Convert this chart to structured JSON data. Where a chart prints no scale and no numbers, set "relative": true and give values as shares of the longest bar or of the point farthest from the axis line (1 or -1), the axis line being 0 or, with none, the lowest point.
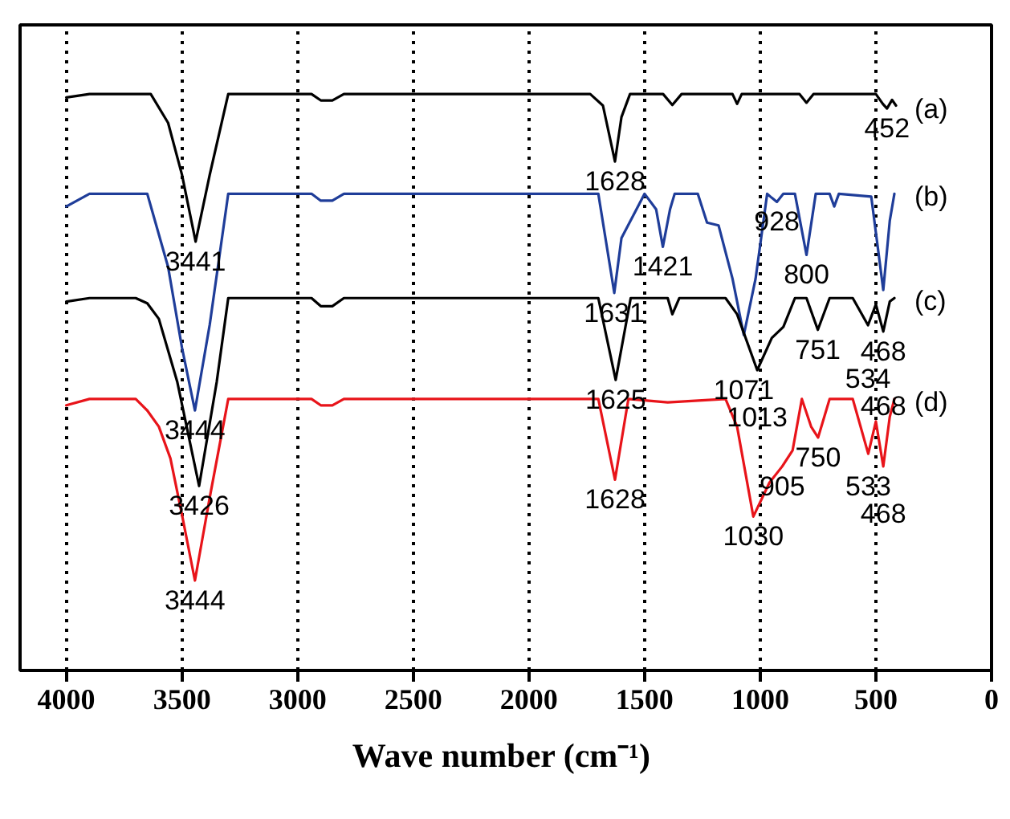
{
  "chart_data": {
    "type": "line",
    "relative": true,
    "xlabel": "Wave  number (cm⁻¹)",
    "xlim": [
      4200,
      0
    ],
    "xticks": [
      4000,
      3500,
      3000,
      2500,
      2000,
      1500,
      1000,
      500,
      0
    ],
    "grid": "x",
    "marker": "none",
    "line_style": "solid",
    "series": [
      {
        "name": "(a)",
        "color": "#000000",
        "x": [
          4000,
          3900,
          3635,
          3560,
          3500,
          3441,
          3380,
          3300,
          2940,
          2900,
          2850,
          2800,
          1735,
          1680,
          1628,
          1600,
          1563,
          1420,
          1380,
          1340,
          1120,
          1100,
          1080,
          830,
          800,
          770,
          500,
          470,
          452,
          430,
          413
        ],
        "values": [
          0.994,
          1.0,
          1.0,
          0.95,
          0.86,
          0.744,
          0.86,
          1.0,
          1.0,
          0.989,
          0.989,
          1.0,
          1.0,
          0.98,
          0.883,
          0.96,
          1.0,
          1.0,
          0.981,
          1.0,
          1.0,
          0.983,
          1.0,
          1.0,
          0.985,
          1.0,
          1.0,
          0.983,
          0.975,
          0.99,
          0.98
        ]
      },
      {
        "name": "(b)",
        "color": "#1f3d99",
        "x": [
          4000,
          3900,
          3650,
          3560,
          3500,
          3444,
          3380,
          3300,
          2940,
          2900,
          2850,
          2800,
          1700,
          1631,
          1600,
          1500,
          1450,
          1421,
          1390,
          1370,
          1270,
          1230,
          1180,
          1120,
          1071,
          1020,
          970,
          950,
          928,
          900,
          850,
          800,
          760,
          700,
          680,
          660,
          520,
          468,
          440,
          420
        ],
        "values": [
          0.805,
          0.827,
          0.827,
          0.7,
          0.56,
          0.451,
          0.6,
          0.827,
          0.827,
          0.815,
          0.815,
          0.827,
          0.827,
          0.655,
          0.75,
          0.827,
          0.8,
          0.735,
          0.8,
          0.827,
          0.827,
          0.777,
          0.772,
          0.68,
          0.582,
          0.68,
          0.827,
          0.82,
          0.813,
          0.827,
          0.827,
          0.721,
          0.827,
          0.827,
          0.805,
          0.827,
          0.822,
          0.66,
          0.78,
          0.827
        ]
      },
      {
        "name": "(c)",
        "color": "#000000",
        "x": [
          4000,
          3900,
          3700,
          3650,
          3600,
          3520,
          3426,
          3350,
          3300,
          2940,
          2900,
          2850,
          2800,
          1700,
          1625,
          1560,
          1400,
          1380,
          1350,
          1150,
          1100,
          1013,
          950,
          900,
          850,
          800,
          751,
          700,
          600,
          534,
          500,
          468,
          440,
          420
        ],
        "values": [
          0.64,
          0.646,
          0.646,
          0.637,
          0.61,
          0.5,
          0.32,
          0.5,
          0.646,
          0.646,
          0.632,
          0.632,
          0.646,
          0.646,
          0.504,
          0.646,
          0.646,
          0.618,
          0.646,
          0.646,
          0.618,
          0.521,
          0.577,
          0.596,
          0.646,
          0.646,
          0.591,
          0.646,
          0.646,
          0.599,
          0.635,
          0.588,
          0.64,
          0.646
        ]
      },
      {
        "name": "(d)",
        "color": "#e8141a",
        "x": [
          4000,
          3900,
          3700,
          3650,
          3600,
          3550,
          3500,
          3444,
          3380,
          3300,
          2940,
          2900,
          2850,
          2800,
          1700,
          1628,
          1570,
          1400,
          1150,
          1100,
          1030,
          960,
          905,
          860,
          820,
          780,
          750,
          700,
          600,
          533,
          500,
          468,
          440,
          420
        ],
        "values": [
          0.46,
          0.471,
          0.471,
          0.451,
          0.423,
          0.368,
          0.27,
          0.156,
          0.3,
          0.471,
          0.471,
          0.46,
          0.46,
          0.471,
          0.471,
          0.331,
          0.471,
          0.465,
          0.471,
          0.423,
          0.267,
          0.326,
          0.354,
          0.382,
          0.471,
          0.423,
          0.404,
          0.471,
          0.471,
          0.376,
          0.432,
          0.354,
          0.44,
          0.471
        ]
      }
    ],
    "annotations": [
      {
        "text": "3441",
        "x": 3441,
        "y": 0.744
      },
      {
        "text": "1628",
        "x": 1628,
        "y": 0.883
      },
      {
        "text": "452",
        "x": 452,
        "y": 0.975
      },
      {
        "text": "3444",
        "x": 3444,
        "y": 0.451
      },
      {
        "text": "1631",
        "x": 1631,
        "y": 0.655
      },
      {
        "text": "1421",
        "x": 1421,
        "y": 0.735
      },
      {
        "text": "1071",
        "x": 1071,
        "y": 0.582
      },
      {
        "text": "928",
        "x": 928,
        "y": 0.813
      },
      {
        "text": "800",
        "x": 800,
        "y": 0.721
      },
      {
        "text": "468",
        "x": 468,
        "y": 0.66
      },
      {
        "text": "3426",
        "x": 3426,
        "y": 0.32
      },
      {
        "text": "1625",
        "x": 1625,
        "y": 0.504
      },
      {
        "text": "1013",
        "x": 1013,
        "y": 0.521
      },
      {
        "text": "751",
        "x": 751,
        "y": 0.591
      },
      {
        "text": "534",
        "x": 534,
        "y": 0.599
      },
      {
        "text": "468",
        "x": 468,
        "y": 0.588
      },
      {
        "text": "3444",
        "x": 3444,
        "y": 0.156
      },
      {
        "text": "1628",
        "x": 1628,
        "y": 0.331
      },
      {
        "text": "1030",
        "x": 1030,
        "y": 0.267
      },
      {
        "text": "905",
        "x": 905,
        "y": 0.354
      },
      {
        "text": "750",
        "x": 750,
        "y": 0.404
      },
      {
        "text": "533",
        "x": 533,
        "y": 0.376
      },
      {
        "text": "468",
        "x": 468,
        "y": 0.354
      }
    ]
  }
}
